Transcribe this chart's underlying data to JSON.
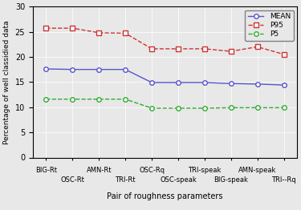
{
  "top_labels": [
    "BIG-Rt",
    "AMN-Rt",
    "OSC-Rq",
    "TRI-speak",
    "AMN-speak"
  ],
  "bottom_labels": [
    "OSC-Rt",
    "TRI-Rt",
    "OSC-speak",
    "BIG-speak",
    "TRI--Rq"
  ],
  "top_positions": [
    0,
    2,
    4,
    6,
    8
  ],
  "bottom_positions": [
    1,
    3,
    5,
    7,
    9
  ],
  "mean_values": [
    17.6,
    17.5,
    17.5,
    17.5,
    14.9,
    14.9,
    14.9,
    14.7,
    14.6,
    14.4
  ],
  "p95_values": [
    25.7,
    25.7,
    24.8,
    24.7,
    21.6,
    21.6,
    21.6,
    21.1,
    22.0,
    20.5
  ],
  "p5_values": [
    11.6,
    11.6,
    11.6,
    11.6,
    9.8,
    9.8,
    9.8,
    9.9,
    9.9,
    9.9
  ],
  "mean_color": "#5555cc",
  "p95_color": "#cc3333",
  "p5_color": "#33aa33",
  "ylabel": "Percentage of well classidied data",
  "xlabel": "Pair of roughness parameters",
  "ylim": [
    0,
    30
  ],
  "yticks": [
    0,
    5,
    10,
    15,
    20,
    25,
    30
  ],
  "legend_labels": [
    "MEAN",
    "P95",
    "P5"
  ],
  "bg_color": "#e8e8e8",
  "figsize": [
    3.75,
    2.62
  ],
  "dpi": 100
}
